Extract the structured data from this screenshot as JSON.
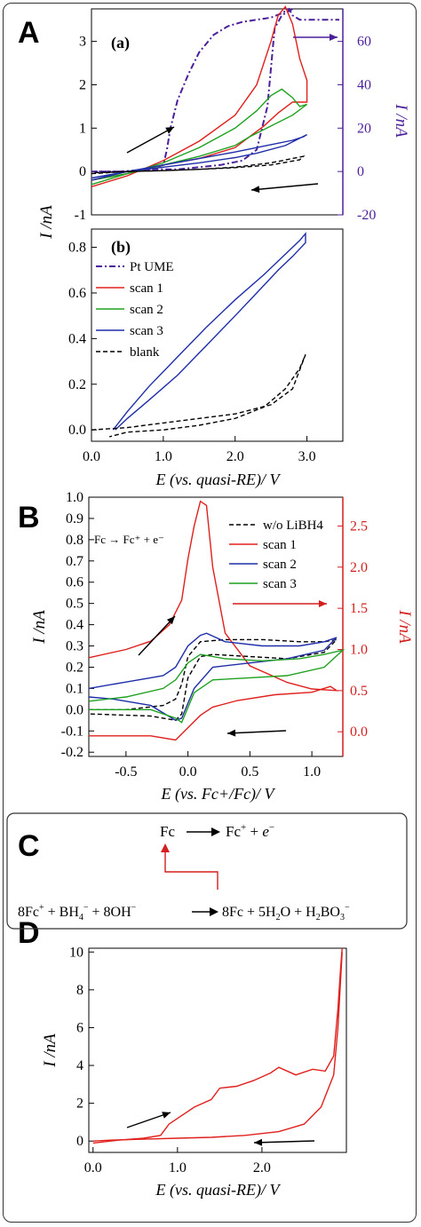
{
  "colors": {
    "pt": "#4b1f9a",
    "scan1": "#e0201c",
    "scan2": "#1ea11e",
    "scan3": "#1f2ea8",
    "blank": "#000000",
    "axis": "#000000",
    "secondary_A": "#4b1f9a",
    "secondary_B": "#d41f1f"
  },
  "panels": {
    "A": "A",
    "B": "B",
    "C": "C",
    "D": "D"
  },
  "chart_data": [
    {
      "id": "A-a",
      "type": "line",
      "panel_label": "(a)",
      "ylabel": "I /nA",
      "ylim": [
        -1,
        3.75
      ],
      "yticks": [
        -1,
        0,
        1,
        2,
        3
      ],
      "y2label": "I /nA",
      "y2lim": [
        -20,
        75
      ],
      "y2ticks": [
        -20,
        0,
        20,
        40,
        60
      ],
      "xlim": [
        0,
        3.5
      ],
      "series": [
        {
          "key": "pt",
          "axis": "y2",
          "x": [
            0.0,
            0.4,
            0.8,
            1.0,
            1.05,
            1.1,
            1.2,
            1.35,
            1.5,
            1.7,
            1.9,
            2.1,
            2.3,
            2.5,
            2.65,
            2.75,
            2.8,
            2.9,
            3.0,
            3.1,
            3.2,
            3.3,
            3.45
          ],
          "y": [
            0,
            0,
            1,
            3,
            10,
            20,
            33,
            45,
            55,
            63,
            67,
            69,
            70,
            71,
            73,
            75,
            72,
            70,
            70,
            70,
            70,
            70,
            70
          ]
        },
        {
          "key": "pt",
          "axis": "y2",
          "x": [
            2.8,
            2.65,
            2.55,
            2.45,
            2.3,
            2.1,
            1.8,
            1.5,
            1.2,
            0.9,
            0.6,
            0.3,
            0.0
          ],
          "y": [
            75,
            72,
            66,
            30,
            10,
            5,
            3,
            2,
            1,
            1,
            0,
            0,
            0
          ]
        },
        {
          "key": "scan1",
          "x": [
            0.0,
            0.5,
            1.0,
            1.5,
            2.0,
            2.3,
            2.5,
            2.6,
            2.7,
            2.8,
            2.9,
            3.0,
            3.0,
            2.8,
            2.6,
            2.4,
            2.2,
            2.0,
            1.5,
            1.0,
            0.5,
            0.0
          ],
          "y": [
            -0.35,
            -0.1,
            0.25,
            0.7,
            1.3,
            2.0,
            3.0,
            3.6,
            3.8,
            3.4,
            2.6,
            2.1,
            1.6,
            1.6,
            1.35,
            1.05,
            0.8,
            0.55,
            0.3,
            0.15,
            -0.05,
            -0.2
          ]
        },
        {
          "key": "scan2",
          "x": [
            0.0,
            0.5,
            1.0,
            1.5,
            2.0,
            2.3,
            2.5,
            2.65,
            2.8,
            2.9,
            3.0,
            2.8,
            2.5,
            2.2,
            2.0,
            1.5,
            1.0,
            0.5,
            0.0
          ],
          "y": [
            -0.3,
            -0.05,
            0.2,
            0.55,
            1.0,
            1.4,
            1.75,
            1.9,
            1.7,
            1.5,
            1.55,
            1.3,
            1.05,
            0.8,
            0.6,
            0.35,
            0.15,
            -0.05,
            -0.2
          ]
        },
        {
          "key": "scan3",
          "x": [
            0.0,
            0.5,
            1.0,
            1.5,
            2.0,
            2.5,
            2.8,
            2.95,
            3.0,
            2.7,
            2.3,
            2.0,
            1.5,
            1.0,
            0.5,
            0.0
          ],
          "y": [
            -0.2,
            0.0,
            0.15,
            0.3,
            0.45,
            0.62,
            0.72,
            0.8,
            0.85,
            0.6,
            0.42,
            0.32,
            0.2,
            0.1,
            0.0,
            -0.15
          ]
        },
        {
          "key": "blank",
          "dashed": true,
          "x": [
            0.0,
            0.5,
            1.0,
            1.5,
            2.0,
            2.5,
            2.9,
            2.95,
            2.5,
            2.0,
            1.5,
            1.0,
            0.5,
            0.0
          ],
          "y": [
            -0.05,
            0.0,
            0.02,
            0.05,
            0.09,
            0.15,
            0.27,
            0.35,
            0.2,
            0.1,
            0.05,
            0.02,
            0.0,
            -0.03
          ]
        }
      ]
    },
    {
      "id": "A-b",
      "type": "line",
      "panel_label": "(b)",
      "xlabel": "E (vs. quasi-RE)/ V",
      "xlim": [
        0,
        3.5
      ],
      "xticks": [
        "0.0",
        "1.0",
        "2.0",
        "3.0"
      ],
      "ylim": [
        -0.05,
        0.88
      ],
      "yticks": [
        "0.0",
        "0.2",
        "0.4",
        "0.6",
        "0.8"
      ],
      "legend": [
        "Pt UME",
        "scan 1",
        "scan 2",
        "scan 3",
        "blank"
      ],
      "series": [
        {
          "key": "scan3",
          "x": [
            0.3,
            0.5,
            0.8,
            1.2,
            1.6,
            2.0,
            2.4,
            2.7,
            2.9,
            2.98,
            2.98,
            2.8,
            2.6,
            2.3,
            2.0,
            1.6,
            1.2,
            0.8,
            0.5,
            0.33
          ],
          "y": [
            0.0,
            0.08,
            0.19,
            0.32,
            0.45,
            0.57,
            0.68,
            0.77,
            0.83,
            0.86,
            0.82,
            0.76,
            0.7,
            0.6,
            0.5,
            0.37,
            0.24,
            0.13,
            0.05,
            0.0
          ]
        },
        {
          "key": "blank",
          "dashed": true,
          "x": [
            0.0,
            0.5,
            1.0,
            1.5,
            2.0,
            2.5,
            2.8,
            2.98,
            2.9,
            2.7,
            2.4,
            2.0,
            1.5,
            1.0,
            0.5,
            0.25
          ],
          "y": [
            0.0,
            0.01,
            0.03,
            0.05,
            0.07,
            0.11,
            0.18,
            0.33,
            0.27,
            0.18,
            0.1,
            0.05,
            0.02,
            0.0,
            -0.01,
            -0.03
          ]
        }
      ]
    },
    {
      "id": "B",
      "type": "line",
      "annotation": "Fc → Fc⁺ + e⁻",
      "xlabel": "E (vs. Fc+/Fc)/ V",
      "ylabel": "I /nA",
      "xlim": [
        -0.8,
        1.25
      ],
      "xticks": [
        "-0.5",
        "0.0",
        "0.5",
        "1.0"
      ],
      "ylim": [
        -0.22,
        1.0
      ],
      "yticks": [
        "-0.2",
        "-0.1",
        "0.0",
        "0.1",
        "0.2",
        "0.3",
        "0.4",
        "0.5",
        "0.6",
        "0.7",
        "0.8",
        "0.9",
        "1.0"
      ],
      "y2label": "I /nA",
      "y2lim": [
        -0.3,
        2.85
      ],
      "y2ticks": [
        "0.0",
        "0.5",
        "1.0",
        "1.5",
        "2.0",
        "2.5"
      ],
      "legend": [
        "w/o LiBH4",
        "scan 1",
        "scan 2",
        "scan 3"
      ],
      "series": [
        {
          "key": "blank",
          "dashed": true,
          "x": [
            -0.8,
            -0.5,
            -0.2,
            -0.1,
            -0.05,
            0.0,
            0.1,
            0.3,
            0.6,
            0.9,
            1.1,
            1.2,
            1.1,
            0.8,
            0.5,
            0.2,
            0.1,
            0.0,
            -0.05,
            -0.1,
            -0.3,
            -0.8
          ],
          "y": [
            0.0,
            0.0,
            0.02,
            0.05,
            0.12,
            0.25,
            0.32,
            0.33,
            0.33,
            0.32,
            0.32,
            0.33,
            0.27,
            0.24,
            0.25,
            0.26,
            0.25,
            0.15,
            -0.02,
            -0.05,
            -0.03,
            -0.02
          ]
        },
        {
          "key": "scan1",
          "axis": "y2",
          "x": [
            -0.8,
            -0.5,
            -0.3,
            -0.15,
            -0.05,
            0.0,
            0.05,
            0.1,
            0.15,
            0.2,
            0.3,
            0.5,
            0.8,
            1.0,
            1.2,
            1.15,
            1.0,
            0.7,
            0.4,
            0.2,
            0.1,
            0.0,
            -0.1,
            -0.3,
            -0.6,
            -0.8
          ],
          "y": [
            0.9,
            1.0,
            1.1,
            1.3,
            1.6,
            2.1,
            2.5,
            2.8,
            2.75,
            2.0,
            1.2,
            0.8,
            0.6,
            0.52,
            0.5,
            0.55,
            0.48,
            0.45,
            0.38,
            0.3,
            0.2,
            0.05,
            -0.1,
            -0.05,
            -0.05,
            -0.05
          ]
        },
        {
          "key": "scan3",
          "color": "scan3",
          "x": [
            -0.8,
            -0.5,
            -0.2,
            -0.1,
            0.0,
            0.1,
            0.15,
            0.3,
            0.6,
            0.9,
            1.1,
            1.2,
            1.1,
            0.8,
            0.5,
            0.2,
            0.05,
            -0.05,
            -0.1,
            -0.3,
            -0.6,
            -0.8
          ],
          "y": [
            0.1,
            0.13,
            0.16,
            0.2,
            0.3,
            0.35,
            0.36,
            0.32,
            0.3,
            0.3,
            0.32,
            0.34,
            0.28,
            0.24,
            0.22,
            0.2,
            0.1,
            -0.04,
            -0.05,
            0.02,
            0.05,
            0.06
          ]
        },
        {
          "key": "scan2",
          "color": "scan2",
          "x": [
            -0.8,
            -0.5,
            -0.2,
            -0.1,
            0.0,
            0.1,
            0.3,
            0.6,
            0.9,
            1.1,
            1.25,
            1.1,
            0.8,
            0.5,
            0.2,
            0.05,
            -0.05,
            -0.1,
            -0.3,
            -0.6,
            -0.8
          ],
          "y": [
            0.04,
            0.06,
            0.1,
            0.14,
            0.22,
            0.26,
            0.24,
            0.23,
            0.24,
            0.26,
            0.28,
            0.2,
            0.16,
            0.15,
            0.14,
            0.08,
            -0.06,
            -0.04,
            0.0,
            0.0,
            0.0
          ]
        }
      ]
    },
    {
      "id": "D",
      "type": "line",
      "xlabel": "E (vs. quasi-RE)/ V",
      "ylabel": "I /nA",
      "xlim": [
        -0.05,
        3.0
      ],
      "xticks": [
        "0.0",
        "1.0",
        "2.0"
      ],
      "ylim": [
        -0.6,
        10.2
      ],
      "yticks": [
        "0",
        "2",
        "4",
        "6",
        "8",
        "10"
      ],
      "series": [
        {
          "key": "scan1",
          "x": [
            0.0,
            0.3,
            0.6,
            0.8,
            0.9,
            1.0,
            1.2,
            1.4,
            1.5,
            1.7,
            1.9,
            2.1,
            2.2,
            2.4,
            2.6,
            2.75,
            2.85,
            2.9,
            2.93,
            2.95
          ],
          "y": [
            -0.1,
            0.05,
            0.15,
            0.3,
            0.9,
            1.2,
            1.8,
            2.2,
            2.8,
            2.9,
            3.2,
            3.6,
            3.9,
            3.5,
            3.8,
            3.7,
            4.5,
            7.0,
            9.0,
            10.2
          ]
        },
        {
          "key": "scan1",
          "x": [
            2.95,
            2.9,
            2.85,
            2.7,
            2.5,
            2.2,
            1.8,
            1.4,
            1.0,
            0.6,
            0.2,
            0.0
          ],
          "y": [
            10.0,
            6.0,
            3.5,
            1.8,
            0.9,
            0.5,
            0.3,
            0.2,
            0.15,
            0.1,
            0.05,
            0.0
          ]
        }
      ]
    }
  ],
  "panelC": {
    "line1_left": "Fc",
    "line1_right": "Fc",
    "line2_left": "8Fc",
    "line2_mid1": " + BH",
    "line2_mid2": " + 8OH",
    "line2_right1": "8Fc + 5H",
    "line2_right2": "O + H",
    "line2_right3": "BO",
    "sub4": "4",
    "sub2": "2",
    "sub3": "3",
    "sup_plus": "+",
    "sup_minus": "−",
    "e": "e"
  }
}
